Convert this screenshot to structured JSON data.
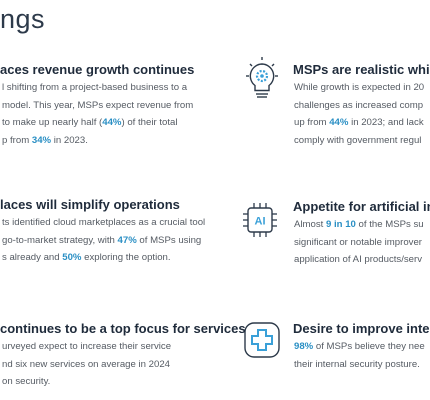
{
  "header": {
    "title": "ngs"
  },
  "left": [
    {
      "heading": "aces revenue growth continues",
      "lines": [
        [
          "l shifting from a project-based business to a"
        ],
        [
          "model. This year, MSPs expect revenue from"
        ],
        [
          "to make up nearly half (",
          {
            "text": "44%",
            "highlight": true
          },
          ") of their total"
        ],
        [
          "p from ",
          {
            "text": "34%",
            "highlight": true
          },
          " in 2023."
        ]
      ]
    },
    {
      "heading": "laces will simplify operations",
      "lines": [
        [
          "ts identified cloud marketplaces as a crucial tool"
        ],
        [
          "go-to-market strategy, with ",
          {
            "text": "47%",
            "highlight": true
          },
          " of MSPs using"
        ],
        [
          "s already and ",
          {
            "text": "50%",
            "highlight": true
          },
          " exploring the option."
        ]
      ]
    },
    {
      "heading": "continues to be a top focus for services",
      "lines": [
        [
          "urveyed expect to increase their service"
        ],
        [
          "nd six new services on average in 2024"
        ],
        [
          "on security."
        ]
      ]
    }
  ],
  "right": [
    {
      "heading": "MSPs are realistic while",
      "lines": [
        [
          "While growth is expected in 20"
        ],
        [
          "challenges as increased comp"
        ],
        [
          "up from ",
          {
            "text": "44%",
            "highlight": true
          },
          " in 2023; and lack"
        ],
        [
          "comply with government regul"
        ]
      ]
    },
    {
      "heading": "Appetite for artificial inte",
      "icon_label": "AI",
      "lines": [
        [
          "Almost ",
          {
            "text": "9 in 10",
            "highlight": true
          },
          " of the MSPs su"
        ],
        [
          "significant or notable improver"
        ],
        [
          "application of AI products/serv"
        ]
      ]
    },
    {
      "heading": "Desire to improve intern",
      "lines": [
        [
          {
            "text": "98%",
            "highlight": true
          },
          " of MSPs believe they nee"
        ],
        [
          "their internal security posture."
        ]
      ]
    }
  ]
}
